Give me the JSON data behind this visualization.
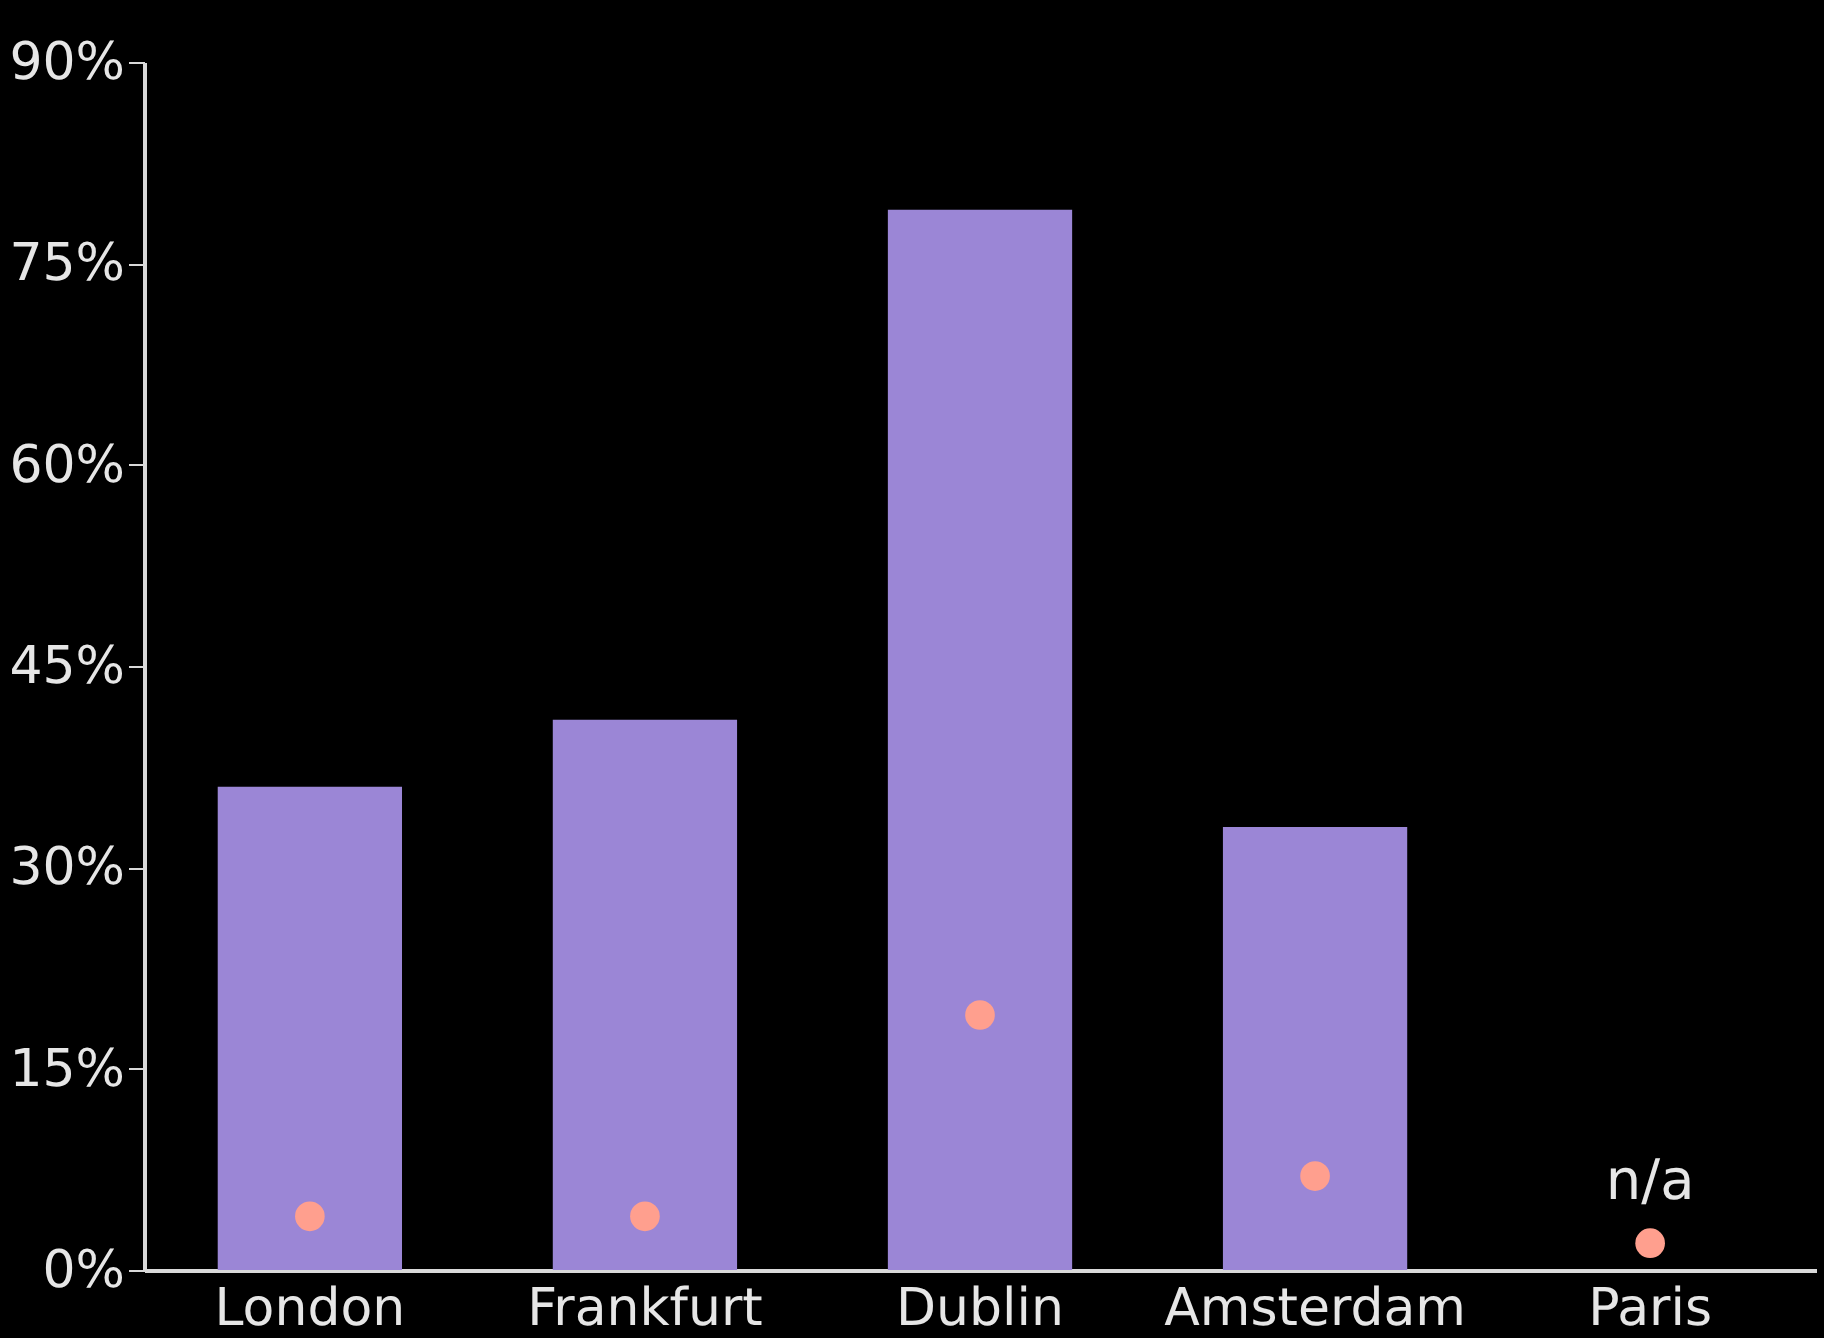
{
  "chart_data": {
    "type": "bar",
    "categories": [
      "London",
      "Frankfurt",
      "Dublin",
      "Amsterdam",
      "Paris"
    ],
    "series": [
      {
        "color": "#9b86d6",
        "values": [
          36,
          41,
          79,
          33,
          null
        ]
      },
      {
        "type": "scatter",
        "color": "#ff9f8e",
        "x": [
          "London",
          "Frankfurt",
          "Dublin",
          "Amsterdam",
          "Paris"
        ],
        "values": [
          4,
          4,
          19,
          7,
          2
        ]
      }
    ],
    "ylim": [
      0,
      90
    ],
    "yticks": [
      {
        "value": 0,
        "label": "0%"
      },
      {
        "value": 15,
        "label": "15%"
      },
      {
        "value": 30,
        "label": "30%"
      },
      {
        "value": 45,
        "label": "45%"
      },
      {
        "value": 60,
        "label": "60%"
      },
      {
        "value": 75,
        "label": "75%"
      },
      {
        "value": 90,
        "label": "90%"
      }
    ],
    "annotations": [
      "n/a"
    ],
    "grid": false,
    "marker": "circle"
  }
}
